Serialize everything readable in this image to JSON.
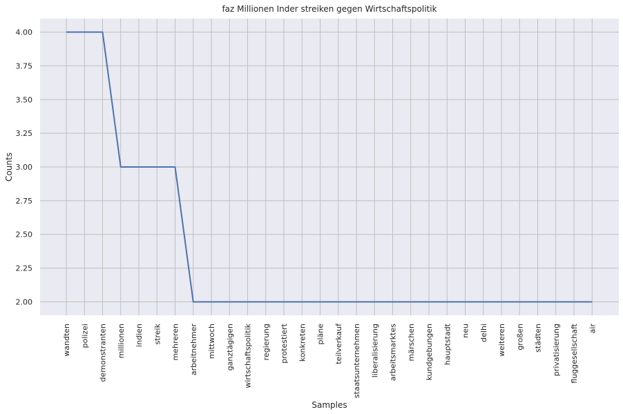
{
  "chart_data": {
    "type": "line",
    "title": "faz Millionen Inder streiken gegen Wirtschaftspolitik",
    "xlabel": "Samples",
    "ylabel": "Counts",
    "ylim": [
      1.9,
      4.1
    ],
    "yticks": [
      "2.00",
      "2.25",
      "2.50",
      "2.75",
      "3.00",
      "3.25",
      "3.50",
      "3.75",
      "4.00"
    ],
    "grid": true,
    "line_color": "#4c72b0",
    "background_color": "#eaeaf2",
    "grid_color": "#bfbfbf",
    "categories": [
      "wandten",
      "polizei",
      "demonstranten",
      "millionen",
      "indien",
      "streik",
      "mehreren",
      "arbeitnehmer",
      "mittwoch",
      "ganztägigen",
      "wirtschaftspolitik",
      "regierung",
      "protestiert",
      "konkreten",
      "pläne",
      "teilverkauf",
      "staatsunternehmen",
      "liberalisierung",
      "arbeitsmarktes",
      "märschen",
      "kundgebungen",
      "hauptstadt",
      "neu",
      "delhi",
      "weiteren",
      "großen",
      "städten",
      "privatisierung",
      "fluggesellschaft",
      "air"
    ],
    "values": [
      4,
      4,
      4,
      3,
      3,
      3,
      3,
      2,
      2,
      2,
      2,
      2,
      2,
      2,
      2,
      2,
      2,
      2,
      2,
      2,
      2,
      2,
      2,
      2,
      2,
      2,
      2,
      2,
      2,
      2
    ]
  }
}
